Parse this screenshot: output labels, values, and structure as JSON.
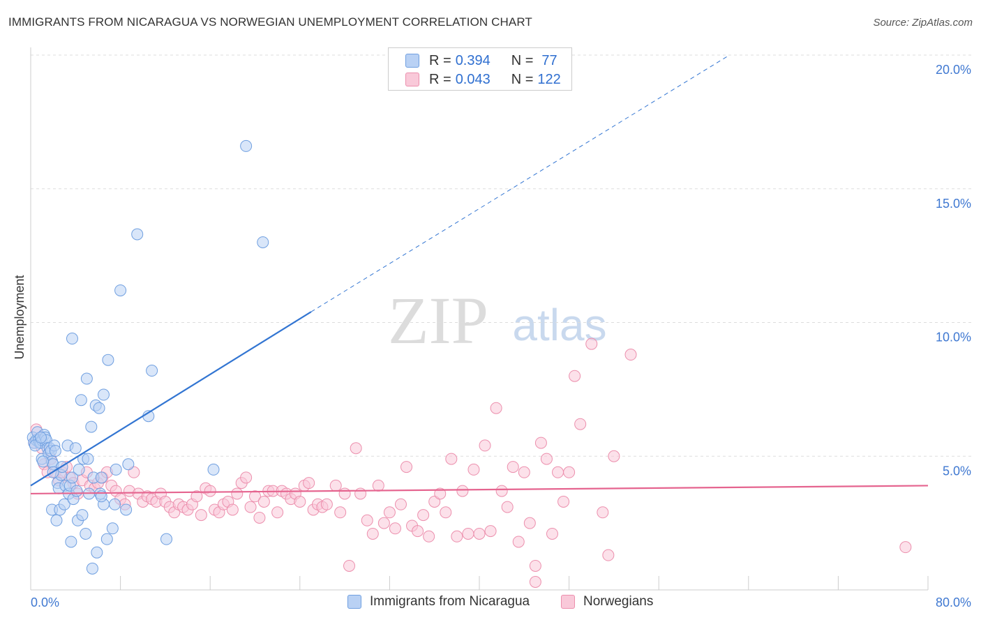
{
  "header": {
    "title": "IMMIGRANTS FROM NICARAGUA VS NORWEGIAN UNEMPLOYMENT CORRELATION CHART",
    "source": "Source: ZipAtlas.com"
  },
  "watermark": {
    "zip": "ZIP",
    "atlas": "atlas"
  },
  "legend": {
    "r_label": "R =",
    "n_label": "N =",
    "rows": [
      {
        "name": "Immigrants from Nicaragua",
        "r": "0.394",
        "n": "77",
        "fill": "#b9d1f4",
        "stroke": "#6f9fe0"
      },
      {
        "name": "Norwegians",
        "r": "0.043",
        "n": "122",
        "fill": "#f9c9d9",
        "stroke": "#ec8fad"
      }
    ]
  },
  "colors": {
    "blue_line": "#3275d2",
    "pink_line": "#e5648f",
    "axis_text": "#3f78d1",
    "grid": "#dddddd"
  },
  "chart_data": {
    "type": "scatter",
    "title": "IMMIGRANTS FROM NICARAGUA VS NORWEGIAN UNEMPLOYMENT CORRELATION CHART",
    "xlabel": "",
    "ylabel": "Unemployment",
    "xlim": [
      0,
      80
    ],
    "ylim": [
      0,
      20
    ],
    "x_tick_labels": [
      "0.0%",
      "80.0%"
    ],
    "y_ticks": [
      5,
      10,
      15,
      20
    ],
    "y_tick_labels": [
      "5.0%",
      "10.0%",
      "15.0%",
      "20.0%"
    ],
    "grid": true,
    "legend_position": "top-center",
    "series": [
      {
        "name": "Immigrants from Nicaragua",
        "r": 0.394,
        "n": 77,
        "trend": {
          "x0": 0,
          "y0": 3.9,
          "x1": 25,
          "y1": 10.4,
          "dash_to_x": 62.3,
          "dash_to_y": 20.0
        },
        "points": [
          [
            0.2,
            5.7
          ],
          [
            0.3,
            5.5
          ],
          [
            0.5,
            5.6
          ],
          [
            0.6,
            5.9
          ],
          [
            0.7,
            5.6
          ],
          [
            0.8,
            5.5
          ],
          [
            0.9,
            5.5
          ],
          [
            1.0,
            5.6
          ],
          [
            1.0,
            4.9
          ],
          [
            1.2,
            5.8
          ],
          [
            1.3,
            5.7
          ],
          [
            1.4,
            5.6
          ],
          [
            1.5,
            5.3
          ],
          [
            1.6,
            5.1
          ],
          [
            1.7,
            5.3
          ],
          [
            1.8,
            5.2
          ],
          [
            1.9,
            4.8
          ],
          [
            2.0,
            4.7
          ],
          [
            2.1,
            5.4
          ],
          [
            2.2,
            5.2
          ],
          [
            1.9,
            3.0
          ],
          [
            2.3,
            2.6
          ],
          [
            2.4,
            4.0
          ],
          [
            2.5,
            3.8
          ],
          [
            2.6,
            3.0
          ],
          [
            2.7,
            4.3
          ],
          [
            2.8,
            4.6
          ],
          [
            3.0,
            3.2
          ],
          [
            3.1,
            3.9
          ],
          [
            3.3,
            5.4
          ],
          [
            3.4,
            3.6
          ],
          [
            3.5,
            3.9
          ],
          [
            3.6,
            1.8
          ],
          [
            3.7,
            4.2
          ],
          [
            3.8,
            3.4
          ],
          [
            4.0,
            5.3
          ],
          [
            4.1,
            3.7
          ],
          [
            4.2,
            2.6
          ],
          [
            4.3,
            4.5
          ],
          [
            4.5,
            7.1
          ],
          [
            4.6,
            2.8
          ],
          [
            4.7,
            4.9
          ],
          [
            4.9,
            2.1
          ],
          [
            5.0,
            7.9
          ],
          [
            5.1,
            4.9
          ],
          [
            5.2,
            3.6
          ],
          [
            5.4,
            6.1
          ],
          [
            5.5,
            0.8
          ],
          [
            5.6,
            4.2
          ],
          [
            5.8,
            6.9
          ],
          [
            5.9,
            1.4
          ],
          [
            6.1,
            6.8
          ],
          [
            6.2,
            3.6
          ],
          [
            6.3,
            4.2
          ],
          [
            6.5,
            7.3
          ],
          [
            6.5,
            3.2
          ],
          [
            6.8,
            1.9
          ],
          [
            6.9,
            8.6
          ],
          [
            7.3,
            2.3
          ],
          [
            7.5,
            3.2
          ],
          [
            7.6,
            4.5
          ],
          [
            8.0,
            11.2
          ],
          [
            8.5,
            3.0
          ],
          [
            8.7,
            4.7
          ],
          [
            9.5,
            13.3
          ],
          [
            10.5,
            6.5
          ],
          [
            10.8,
            8.2
          ],
          [
            12.1,
            1.9
          ],
          [
            16.3,
            4.5
          ],
          [
            19.2,
            16.6
          ],
          [
            20.7,
            13.0
          ],
          [
            3.7,
            9.4
          ],
          [
            2.0,
            4.4
          ],
          [
            1.1,
            4.8
          ],
          [
            0.4,
            5.4
          ],
          [
            0.9,
            5.7
          ],
          [
            6.3,
            3.5
          ]
        ]
      },
      {
        "name": "Norwegians",
        "r": 0.043,
        "n": 122,
        "trend": {
          "x0": 0,
          "y0": 3.6,
          "x1": 80,
          "y1": 3.9
        },
        "points": [
          [
            0.3,
            5.5
          ],
          [
            0.5,
            6.0
          ],
          [
            0.8,
            5.6
          ],
          [
            1.0,
            5.3
          ],
          [
            1.2,
            4.7
          ],
          [
            1.5,
            4.4
          ],
          [
            1.8,
            4.9
          ],
          [
            2.2,
            4.4
          ],
          [
            2.5,
            4.1
          ],
          [
            2.8,
            4.4
          ],
          [
            3.2,
            4.6
          ],
          [
            3.5,
            4.2
          ],
          [
            3.8,
            4.0
          ],
          [
            4.2,
            3.6
          ],
          [
            4.6,
            4.1
          ],
          [
            5.0,
            4.4
          ],
          [
            5.3,
            3.9
          ],
          [
            5.7,
            3.8
          ],
          [
            6.0,
            4.0
          ],
          [
            6.4,
            4.2
          ],
          [
            6.8,
            4.4
          ],
          [
            7.2,
            3.9
          ],
          [
            7.6,
            3.7
          ],
          [
            8.0,
            3.4
          ],
          [
            8.4,
            3.2
          ],
          [
            8.8,
            3.7
          ],
          [
            9.2,
            4.4
          ],
          [
            9.6,
            3.6
          ],
          [
            10.0,
            3.3
          ],
          [
            10.4,
            3.5
          ],
          [
            10.8,
            3.4
          ],
          [
            11.2,
            3.3
          ],
          [
            11.6,
            3.6
          ],
          [
            12.0,
            3.3
          ],
          [
            12.4,
            3.1
          ],
          [
            12.8,
            2.9
          ],
          [
            13.2,
            3.2
          ],
          [
            13.6,
            3.1
          ],
          [
            14.0,
            3.0
          ],
          [
            14.4,
            3.2
          ],
          [
            14.8,
            3.5
          ],
          [
            15.2,
            2.8
          ],
          [
            15.6,
            3.8
          ],
          [
            16.0,
            3.7
          ],
          [
            16.4,
            3.0
          ],
          [
            16.8,
            2.9
          ],
          [
            17.2,
            3.2
          ],
          [
            17.6,
            3.3
          ],
          [
            18.0,
            3.0
          ],
          [
            18.4,
            3.6
          ],
          [
            18.8,
            4.0
          ],
          [
            19.2,
            4.2
          ],
          [
            19.6,
            3.1
          ],
          [
            20.0,
            3.5
          ],
          [
            20.4,
            2.7
          ],
          [
            20.8,
            3.3
          ],
          [
            21.2,
            3.7
          ],
          [
            21.6,
            3.7
          ],
          [
            22.0,
            2.9
          ],
          [
            22.4,
            3.7
          ],
          [
            22.8,
            3.6
          ],
          [
            23.2,
            3.4
          ],
          [
            23.6,
            3.6
          ],
          [
            24.0,
            3.3
          ],
          [
            24.4,
            3.9
          ],
          [
            24.8,
            4.0
          ],
          [
            25.2,
            3.0
          ],
          [
            25.6,
            3.2
          ],
          [
            26.0,
            3.1
          ],
          [
            26.4,
            3.2
          ],
          [
            27.2,
            3.9
          ],
          [
            27.6,
            2.9
          ],
          [
            28.0,
            3.6
          ],
          [
            28.4,
            0.9
          ],
          [
            29.0,
            5.3
          ],
          [
            29.4,
            3.6
          ],
          [
            30.0,
            2.6
          ],
          [
            30.5,
            2.1
          ],
          [
            31.0,
            3.9
          ],
          [
            31.5,
            2.5
          ],
          [
            32.0,
            2.9
          ],
          [
            32.5,
            2.3
          ],
          [
            33.0,
            3.2
          ],
          [
            33.5,
            4.6
          ],
          [
            34.0,
            2.4
          ],
          [
            34.5,
            2.2
          ],
          [
            35.0,
            2.8
          ],
          [
            35.5,
            2.0
          ],
          [
            36.0,
            3.3
          ],
          [
            36.5,
            3.6
          ],
          [
            37.0,
            2.9
          ],
          [
            37.5,
            4.9
          ],
          [
            38.0,
            2.0
          ],
          [
            38.5,
            3.7
          ],
          [
            39.0,
            2.1
          ],
          [
            39.5,
            4.5
          ],
          [
            40.0,
            2.1
          ],
          [
            40.5,
            5.4
          ],
          [
            41.0,
            2.2
          ],
          [
            41.5,
            6.8
          ],
          [
            42.0,
            3.7
          ],
          [
            42.5,
            3.1
          ],
          [
            43.0,
            4.6
          ],
          [
            43.5,
            1.8
          ],
          [
            44.0,
            4.4
          ],
          [
            44.5,
            2.5
          ],
          [
            45.0,
            0.9
          ],
          [
            45.5,
            5.5
          ],
          [
            46.0,
            4.9
          ],
          [
            46.5,
            2.1
          ],
          [
            47.0,
            4.4
          ],
          [
            47.5,
            3.3
          ],
          [
            48.0,
            4.4
          ],
          [
            48.5,
            8.0
          ],
          [
            49.0,
            6.2
          ],
          [
            50.0,
            9.2
          ],
          [
            51.0,
            2.9
          ],
          [
            51.5,
            1.3
          ],
          [
            52.0,
            5.0
          ],
          [
            53.5,
            8.8
          ],
          [
            45.0,
            0.3
          ],
          [
            78.0,
            1.6
          ]
        ]
      }
    ]
  }
}
